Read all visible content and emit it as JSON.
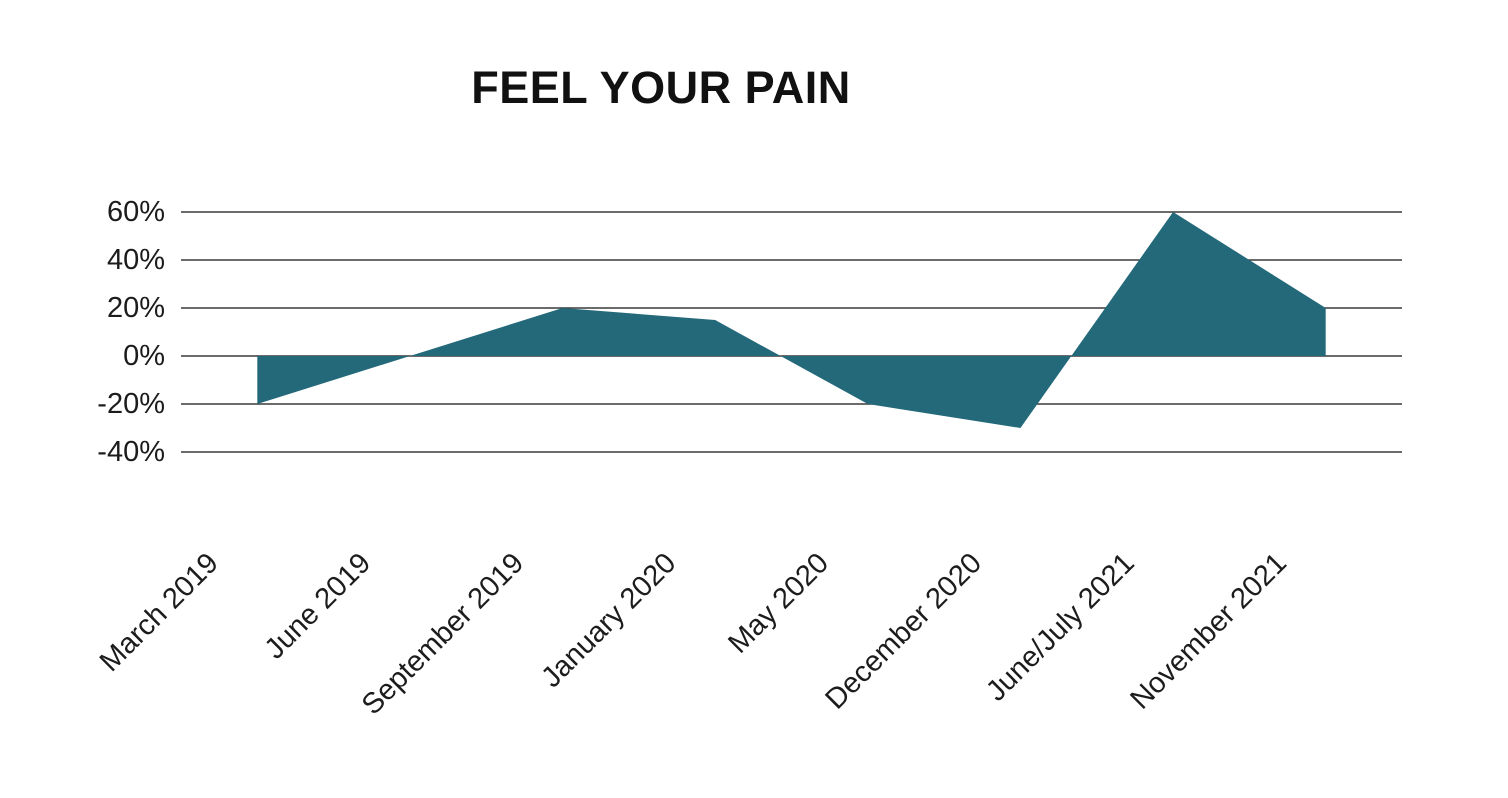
{
  "chart_data": {
    "type": "area",
    "title": "FEEL YOUR PAIN",
    "categories": [
      "March 2019",
      "June 2019",
      "September 2019",
      "January 2020",
      "May 2020",
      "December 2020",
      "June/July 2021",
      "November 2021"
    ],
    "values": [
      -20,
      0,
      20,
      15,
      -20,
      -30,
      60,
      20
    ],
    "unit": "%",
    "xlabel": "",
    "ylabel": "",
    "ylim": [
      -40,
      60
    ],
    "yticks": [
      60,
      40,
      20,
      0,
      -20,
      -40
    ],
    "ytick_labels": [
      "60%",
      "40%",
      "20%",
      "0%",
      "-20%",
      "-40%"
    ],
    "baseline": 0,
    "grid": "horizontal",
    "legend": "none",
    "colors": {
      "area_fill": "#23697A",
      "grid_line": "#3a3a3a",
      "text": "#1c1c1c",
      "title_text": "#111111",
      "background": "#ffffff"
    }
  }
}
